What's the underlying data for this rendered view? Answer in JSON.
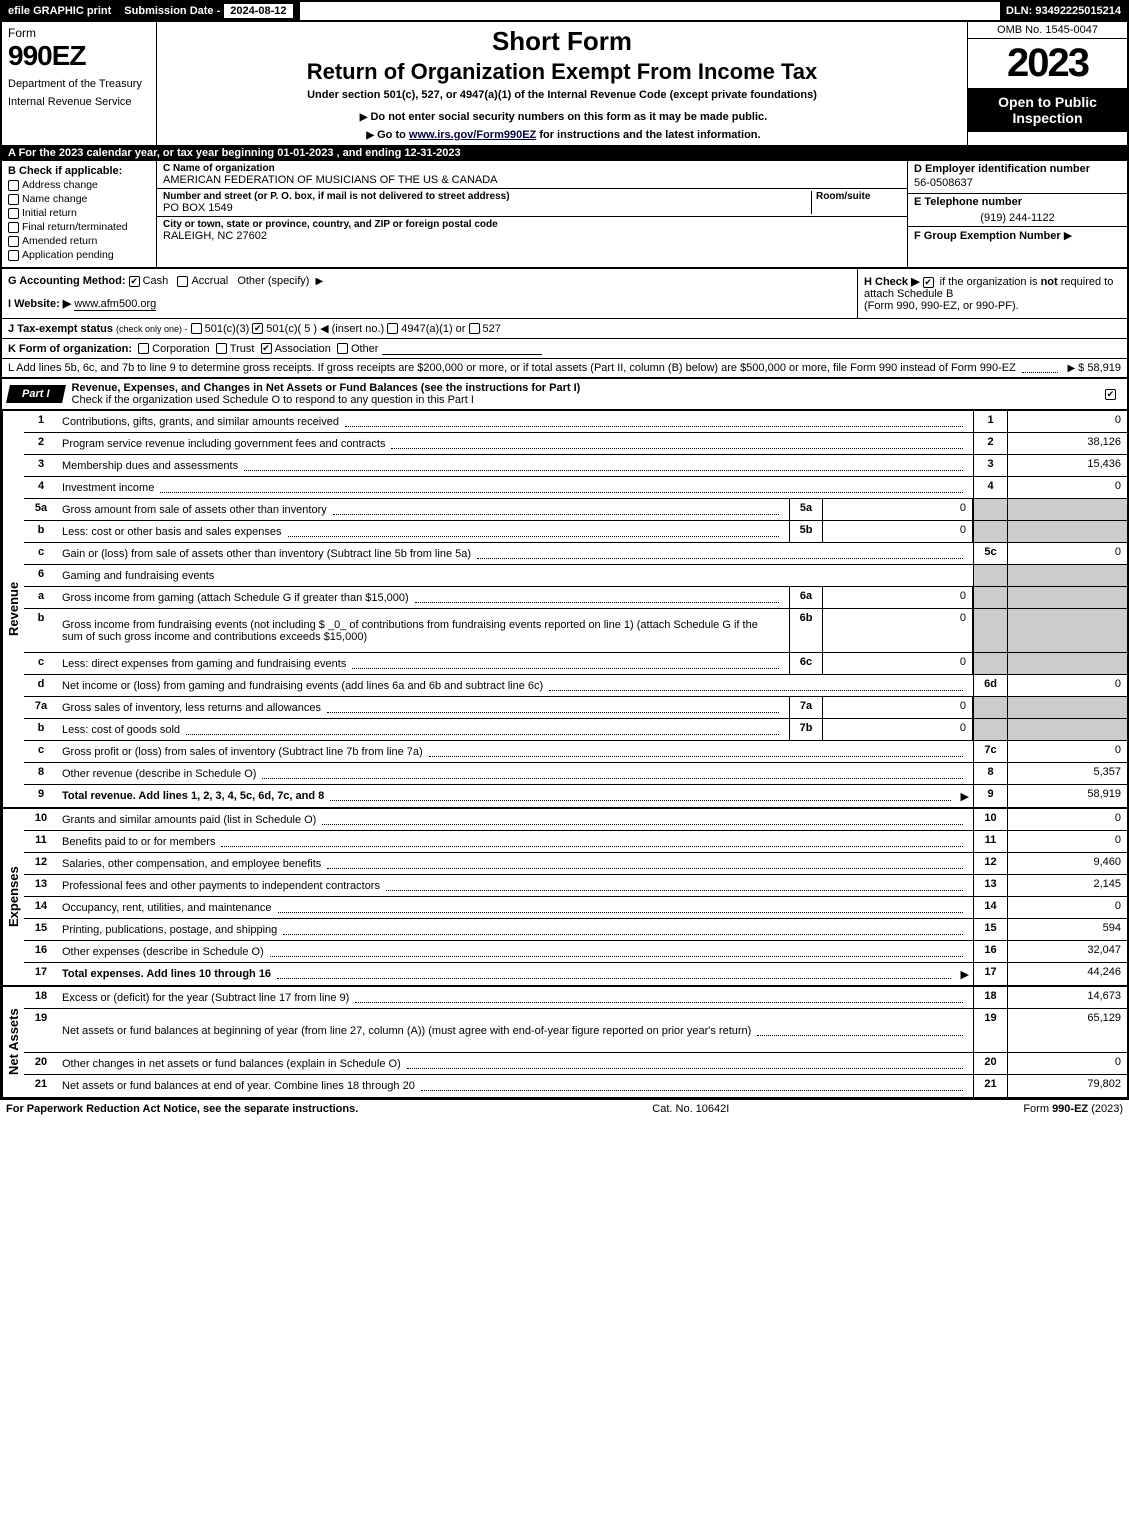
{
  "topbar": {
    "efile": "efile GRAPHIC print",
    "subdate_label": "Submission Date -",
    "subdate": "2024-08-12",
    "dln_label": "DLN:",
    "dln": "93492225015214"
  },
  "header": {
    "form_word": "Form",
    "form_num": "990EZ",
    "dept1": "Department of the Treasury",
    "dept2": "Internal Revenue Service",
    "short": "Short Form",
    "return": "Return of Organization Exempt From Income Tax",
    "under": "Under section 501(c), 527, or 4947(a)(1) of the Internal Revenue Code (except private foundations)",
    "donot": "Do not enter social security numbers on this form as it may be made public.",
    "goto_pre": "Go to ",
    "goto_link": "www.irs.gov/Form990EZ",
    "goto_post": " for instructions and the latest information.",
    "omb": "OMB No. 1545-0047",
    "year": "2023",
    "open": "Open to Public Inspection"
  },
  "A": {
    "text_pre": "A  For the 2023 calendar year, or tax year beginning ",
    "begin": "01-01-2023",
    "mid": " , and ending ",
    "end": "12-31-2023"
  },
  "B": {
    "hdr": "B  Check if applicable:",
    "opts": [
      "Address change",
      "Name change",
      "Initial return",
      "Final return/terminated",
      "Amended return",
      "Application pending"
    ]
  },
  "C": {
    "name_lbl": "C Name of organization",
    "name": "AMERICAN FEDERATION OF MUSICIANS OF THE US & CANADA",
    "street_lbl": "Number and street (or P. O. box, if mail is not delivered to street address)",
    "room_lbl": "Room/suite",
    "street": "PO BOX 1549",
    "city_lbl": "City or town, state or province, country, and ZIP or foreign postal code",
    "city": "RALEIGH, NC  27602"
  },
  "D": {
    "lbl": "D Employer identification number",
    "val": "56-0508637"
  },
  "E": {
    "lbl": "E Telephone number",
    "val": "(919) 244-1122"
  },
  "F": {
    "lbl": "F Group Exemption Number",
    "arrow": "▶"
  },
  "G": {
    "lbl": "G Accounting Method:",
    "cash": "Cash",
    "accrual": "Accrual",
    "other": "Other (specify)"
  },
  "H": {
    "lbl": "H  Check ▶",
    "text1": "if the organization is ",
    "not": "not",
    "text2": " required to attach Schedule B",
    "text3": "(Form 990, 990-EZ, or 990-PF)."
  },
  "I": {
    "lbl": "I Website: ▶",
    "val": "www.afm500.org"
  },
  "J": {
    "lbl": "J Tax-exempt status",
    "sub": "(check only one) -",
    "o1": "501(c)(3)",
    "o2": "501(c)( 5 ) ◀ (insert no.)",
    "o3": "4947(a)(1) or",
    "o4": "527"
  },
  "K": {
    "lbl": "K Form of organization:",
    "o1": "Corporation",
    "o2": "Trust",
    "o3": "Association",
    "o4": "Other"
  },
  "L": {
    "text": "L Add lines 5b, 6c, and 7b to line 9 to determine gross receipts. If gross receipts are $200,000 or more, or if total assets (Part II, column (B) below) are $500,000 or more, file Form 990 instead of Form 990-EZ",
    "amt": "$ 58,919"
  },
  "part1": {
    "tab": "Part I",
    "title": "Revenue, Expenses, and Changes in Net Assets or Fund Balances (see the instructions for Part I)",
    "sub": "Check if the organization used Schedule O to respond to any question in this Part I"
  },
  "revenue_label": "Revenue",
  "expenses_label": "Expenses",
  "netassets_label": "Net Assets",
  "lines": [
    {
      "n": "1",
      "desc": "Contributions, gifts, grants, and similar amounts received",
      "rn": "1",
      "rv": "0"
    },
    {
      "n": "2",
      "desc": "Program service revenue including government fees and contracts",
      "rn": "2",
      "rv": "38,126"
    },
    {
      "n": "3",
      "desc": "Membership dues and assessments",
      "rn": "3",
      "rv": "15,436"
    },
    {
      "n": "4",
      "desc": "Investment income",
      "rn": "4",
      "rv": "0"
    },
    {
      "n": "5a",
      "desc": "Gross amount from sale of assets other than inventory",
      "mn": "5a",
      "mv": "0",
      "shade": true
    },
    {
      "n": "b",
      "desc": "Less: cost or other basis and sales expenses",
      "mn": "5b",
      "mv": "0",
      "shade": true
    },
    {
      "n": "c",
      "desc": "Gain or (loss) from sale of assets other than inventory (Subtract line 5b from line 5a)",
      "rn": "5c",
      "rv": "0"
    },
    {
      "n": "6",
      "desc": "Gaming and fundraising events",
      "shade": true,
      "nobox": true
    },
    {
      "n": "a",
      "desc": "Gross income from gaming (attach Schedule G if greater than $15,000)",
      "mn": "6a",
      "mv": "0",
      "shade": true
    },
    {
      "n": "b",
      "desc": "Gross income from fundraising events (not including $ _0_ of contributions from fundraising events reported on line 1) (attach Schedule G if the sum of such gross income and contributions exceeds $15,000)",
      "mn": "6b",
      "mv": "0",
      "shade": true,
      "tall": true
    },
    {
      "n": "c",
      "desc": "Less: direct expenses from gaming and fundraising events",
      "mn": "6c",
      "mv": "0",
      "shade": true
    },
    {
      "n": "d",
      "desc": "Net income or (loss) from gaming and fundraising events (add lines 6a and 6b and subtract line 6c)",
      "rn": "6d",
      "rv": "0"
    },
    {
      "n": "7a",
      "desc": "Gross sales of inventory, less returns and allowances",
      "mn": "7a",
      "mv": "0",
      "shade": true
    },
    {
      "n": "b",
      "desc": "Less: cost of goods sold",
      "mn": "7b",
      "mv": "0",
      "shade": true
    },
    {
      "n": "c",
      "desc": "Gross profit or (loss) from sales of inventory (Subtract line 7b from line 7a)",
      "rn": "7c",
      "rv": "0"
    },
    {
      "n": "8",
      "desc": "Other revenue (describe in Schedule O)",
      "rn": "8",
      "rv": "5,357"
    },
    {
      "n": "9",
      "desc": "Total revenue. Add lines 1, 2, 3, 4, 5c, 6d, 7c, and 8",
      "rn": "9",
      "rv": "58,919",
      "bold": true,
      "arrow": true
    }
  ],
  "exp_lines": [
    {
      "n": "10",
      "desc": "Grants and similar amounts paid (list in Schedule O)",
      "rn": "10",
      "rv": "0"
    },
    {
      "n": "11",
      "desc": "Benefits paid to or for members",
      "rn": "11",
      "rv": "0"
    },
    {
      "n": "12",
      "desc": "Salaries, other compensation, and employee benefits",
      "rn": "12",
      "rv": "9,460"
    },
    {
      "n": "13",
      "desc": "Professional fees and other payments to independent contractors",
      "rn": "13",
      "rv": "2,145"
    },
    {
      "n": "14",
      "desc": "Occupancy, rent, utilities, and maintenance",
      "rn": "14",
      "rv": "0"
    },
    {
      "n": "15",
      "desc": "Printing, publications, postage, and shipping",
      "rn": "15",
      "rv": "594"
    },
    {
      "n": "16",
      "desc": "Other expenses (describe in Schedule O)",
      "rn": "16",
      "rv": "32,047"
    },
    {
      "n": "17",
      "desc": "Total expenses. Add lines 10 through 16",
      "rn": "17",
      "rv": "44,246",
      "bold": true,
      "arrow": true
    }
  ],
  "na_lines": [
    {
      "n": "18",
      "desc": "Excess or (deficit) for the year (Subtract line 17 from line 9)",
      "rn": "18",
      "rv": "14,673"
    },
    {
      "n": "19",
      "desc": "Net assets or fund balances at beginning of year (from line 27, column (A)) (must agree with end-of-year figure reported on prior year's return)",
      "rn": "19",
      "rv": "65,129",
      "tall": true
    },
    {
      "n": "20",
      "desc": "Other changes in net assets or fund balances (explain in Schedule O)",
      "rn": "20",
      "rv": "0"
    },
    {
      "n": "21",
      "desc": "Net assets or fund balances at end of year. Combine lines 18 through 20",
      "rn": "21",
      "rv": "79,802"
    }
  ],
  "footer": {
    "left": "For Paperwork Reduction Act Notice, see the separate instructions.",
    "mid": "Cat. No. 10642I",
    "right_pre": "Form ",
    "right_bold": "990-EZ",
    "right_post": " (2023)"
  }
}
